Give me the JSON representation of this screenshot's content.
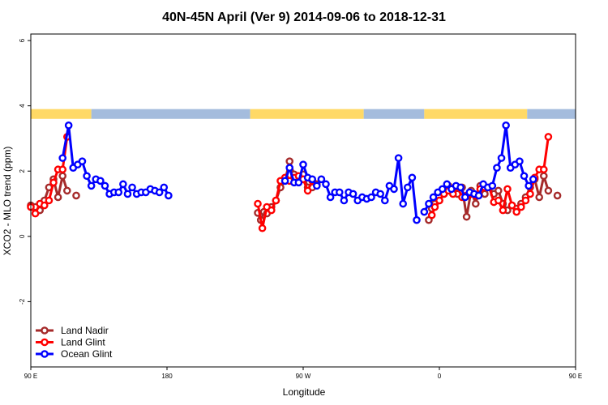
{
  "chart_data": {
    "type": "line",
    "title": "40N-45N April (Ver 9)   2014-09-06 to 2018-12-31",
    "xlabel": "Longitude",
    "ylabel": "XCO2 - MLO trend (ppm)",
    "xlim": [
      90,
      450
    ],
    "ylim": [
      -4,
      6.2
    ],
    "x_ticks": [
      {
        "value": 90,
        "label": "90 E"
      },
      {
        "value": 180,
        "label": "180"
      },
      {
        "value": 270,
        "label": "90 W"
      },
      {
        "value": 360,
        "label": "0"
      },
      {
        "value": 450,
        "label": "90 E"
      },
      {
        "value": 540,
        "label": "180"
      }
    ],
    "y_ticks": [
      -2,
      0,
      2,
      4,
      6
    ],
    "legend_position": "bottom-left",
    "land_mask_band": {
      "y_range": [
        3.6,
        3.9
      ],
      "land_color": "#FFD966",
      "ocean_color": "#A4BCDD",
      "segments": [
        {
          "type": "land",
          "from": 90,
          "to": 130
        },
        {
          "type": "ocean",
          "from": 130,
          "to": 235
        },
        {
          "type": "land",
          "from": 235,
          "to": 310
        },
        {
          "type": "ocean",
          "from": 310,
          "to": 350
        },
        {
          "type": "land",
          "from": 350,
          "to": 418
        },
        {
          "type": "ocean",
          "from": 418,
          "to": 450
        }
      ]
    },
    "series": [
      {
        "name": "Land Nadir",
        "color": "#A52A2A",
        "segments": [
          {
            "x": [
              90,
              93,
              96,
              99,
              102,
              105,
              108,
              111,
              114,
              117,
              120
            ],
            "y": [
              0.95,
              0.9,
              0.8,
              1.1,
              1.5,
              1.75,
              1.2,
              1.85,
              1.4,
              null,
              1.25
            ]
          },
          {
            "x": [
              240,
              242,
              244,
              246,
              249,
              252,
              255,
              258,
              261,
              264,
              267,
              270,
              273,
              276,
              279,
              282
            ],
            "y": [
              0.72,
              0.5,
              0.75,
              0.7,
              0.9,
              1.1,
              1.5,
              1.7,
              2.3,
              1.9,
              1.8,
              1.9,
              1.5,
              1.5,
              1.6,
              null
            ]
          },
          {
            "x": [
              353,
              355,
              357,
              360,
              363,
              366,
              369,
              372,
              375,
              378,
              381,
              384,
              387,
              390,
              393,
              396,
              399,
              402,
              405,
              408,
              411,
              414,
              417,
              420,
              423,
              426,
              429,
              432,
              435,
              438,
              441,
              444
            ],
            "y": [
              0.5,
              0.85,
              1.0,
              1.1,
              1.3,
              1.55,
              1.45,
              1.3,
              1.5,
              0.6,
              1.4,
              1.0,
              1.55,
              1.3,
              1.5,
              1.3,
              1.4,
              1.0,
              0.8,
              0.95,
              0.85,
              1.0,
              1.2,
              1.5,
              1.75,
              1.2,
              1.85,
              1.4,
              null,
              1.25,
              null,
              null
            ]
          }
        ]
      },
      {
        "name": "Land Glint",
        "color": "#FF0000",
        "segments": [
          {
            "x": [
              90,
              93,
              96,
              99,
              102,
              105,
              108,
              111,
              114
            ],
            "y": [
              0.9,
              0.7,
              1.0,
              0.95,
              1.1,
              1.65,
              2.05,
              2.05,
              3.05
            ]
          },
          {
            "x": [
              240,
              243,
              246,
              249,
              252,
              255,
              258,
              261,
              264,
              267,
              270,
              273,
              276
            ],
            "y": [
              1.0,
              0.25,
              0.9,
              0.8,
              1.1,
              1.7,
              1.8,
              1.7,
              1.8,
              1.85,
              1.75,
              1.4,
              1.7
            ]
          },
          {
            "x": [
              355,
              357,
              360,
              363,
              366,
              369,
              372,
              375,
              378,
              381,
              384,
              387,
              390,
              393,
              396,
              399,
              402,
              405,
              408,
              411,
              414,
              417,
              420,
              423,
              426,
              429,
              432,
              435
            ],
            "y": [
              0.65,
              0.9,
              1.1,
              1.3,
              1.4,
              1.3,
              1.5,
              1.2,
              1.25,
              1.3,
              1.25,
              1.45,
              1.5,
              1.5,
              1.05,
              1.1,
              0.8,
              1.45,
              0.95,
              0.75,
              0.9,
              1.1,
              1.3,
              1.8,
              2.05,
              2.05,
              3.05,
              null
            ]
          }
        ]
      },
      {
        "name": "Ocean Glint",
        "color": "#0000FF",
        "segments": [
          {
            "x": [
              111,
              115,
              118,
              121,
              124,
              127,
              130,
              133,
              136,
              139,
              142,
              145,
              148,
              151,
              154,
              157,
              160,
              163,
              166,
              169,
              172,
              175,
              178,
              181,
              184,
              187,
              190,
              193,
              196,
              199,
              202,
              205,
              208,
              211,
              214,
              217,
              220,
              223,
              226,
              229,
              232,
              235,
              238
            ],
            "y": [
              2.4,
              3.4,
              2.1,
              2.2,
              2.3,
              1.85,
              1.55,
              1.75,
              1.7,
              1.55,
              1.3,
              1.35,
              1.35,
              1.6,
              1.3,
              1.5,
              1.3,
              1.35,
              1.35,
              1.45,
              1.4,
              1.35,
              1.5,
              1.25,
              null,
              null,
              null,
              null,
              null,
              null,
              null,
              null,
              null,
              null,
              null,
              null,
              null,
              null,
              null,
              null,
              null,
              null,
              null
            ]
          },
          {
            "x": [
              258,
              261,
              264,
              267,
              270,
              273,
              276,
              279,
              282,
              285,
              288,
              291,
              294,
              297,
              300,
              303,
              306,
              309,
              312,
              315,
              318,
              321,
              324,
              327,
              330,
              333,
              336,
              339,
              342,
              345
            ],
            "y": [
              1.7,
              2.1,
              1.65,
              1.65,
              2.2,
              1.8,
              1.75,
              1.55,
              1.75,
              1.6,
              1.2,
              1.35,
              1.35,
              1.1,
              1.35,
              1.3,
              1.1,
              1.2,
              1.15,
              1.2,
              1.35,
              1.3,
              1.1,
              1.55,
              1.45,
              2.4,
              1.0,
              1.5,
              1.8,
              0.5
            ]
          },
          {
            "x": [
              350,
              353,
              356,
              359,
              362,
              365,
              368,
              371,
              374,
              377,
              380,
              383,
              386,
              389,
              392,
              395,
              398,
              401,
              404,
              407,
              410,
              413,
              416,
              419,
              422
            ],
            "y": [
              0.75,
              1.0,
              1.2,
              1.35,
              1.45,
              1.6,
              1.45,
              1.55,
              1.5,
              1.2,
              1.35,
              1.3,
              1.25,
              1.6,
              1.5,
              1.55,
              2.1,
              2.4,
              3.4,
              2.1,
              2.2,
              2.3,
              1.85,
              1.55,
              1.75
            ]
          }
        ]
      }
    ]
  }
}
